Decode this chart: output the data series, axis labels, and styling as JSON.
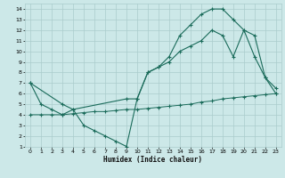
{
  "xlabel": "Humidex (Indice chaleur)",
  "xlim": [
    -0.5,
    23.5
  ],
  "ylim": [
    1,
    14.5
  ],
  "xticks": [
    0,
    1,
    2,
    3,
    4,
    5,
    6,
    7,
    8,
    9,
    10,
    11,
    12,
    13,
    14,
    15,
    16,
    17,
    18,
    19,
    20,
    21,
    22,
    23
  ],
  "yticks": [
    1,
    2,
    3,
    4,
    5,
    6,
    7,
    8,
    9,
    10,
    11,
    12,
    13,
    14
  ],
  "bg_color": "#cce8e8",
  "grid_color": "#aacccc",
  "line_color": "#1a6b5a",
  "line1_x": [
    0,
    1,
    2,
    3,
    4,
    5,
    6,
    7,
    8,
    9,
    10,
    11,
    12,
    13,
    14,
    15,
    16,
    17,
    18,
    19,
    20,
    21,
    22,
    23
  ],
  "line1_y": [
    7.0,
    5.0,
    4.5,
    4.0,
    4.5,
    3.0,
    2.5,
    2.0,
    1.5,
    1.0,
    5.5,
    8.0,
    8.5,
    9.5,
    11.5,
    12.5,
    13.5,
    14.0,
    14.0,
    13.0,
    12.0,
    9.5,
    7.5,
    6.5
  ],
  "line2_x": [
    0,
    3,
    4,
    9,
    10,
    11,
    12,
    13,
    14,
    15,
    16,
    17,
    18,
    19,
    20,
    21,
    22,
    23
  ],
  "line2_y": [
    7.0,
    5.0,
    4.5,
    5.5,
    5.5,
    8.0,
    8.5,
    9.0,
    10.0,
    10.5,
    11.0,
    12.0,
    11.5,
    9.5,
    12.0,
    11.5,
    7.5,
    6.0
  ],
  "line3_x": [
    0,
    1,
    2,
    3,
    4,
    5,
    6,
    7,
    8,
    9,
    10,
    11,
    12,
    13,
    14,
    15,
    16,
    17,
    18,
    19,
    20,
    21,
    22,
    23
  ],
  "line3_y": [
    4.0,
    4.0,
    4.0,
    4.0,
    4.1,
    4.2,
    4.3,
    4.3,
    4.4,
    4.5,
    4.5,
    4.6,
    4.7,
    4.8,
    4.9,
    5.0,
    5.2,
    5.3,
    5.5,
    5.6,
    5.7,
    5.8,
    5.9,
    6.0
  ]
}
